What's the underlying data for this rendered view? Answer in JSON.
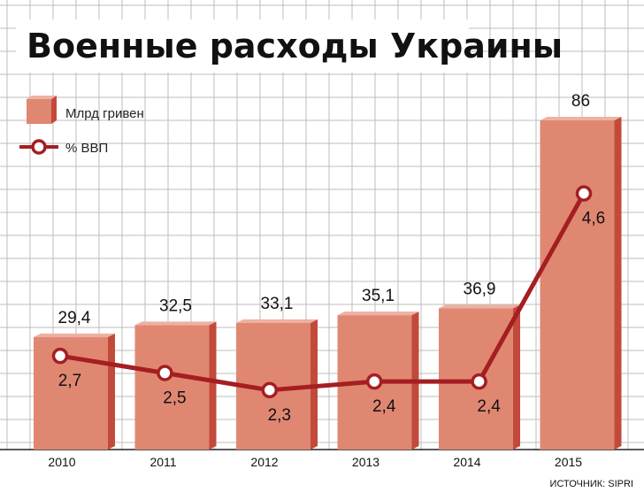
{
  "title": "Военные расходы Украины",
  "legend": {
    "bars": "Млрд гривен",
    "line": "% ВВП"
  },
  "source": "ИСТОЧНИК: SIPRI",
  "colors": {
    "bar_front": "#E08772",
    "bar_side": "#C24A3A",
    "bar_top": "#EDB1A2",
    "line": "#A41E22",
    "grid": "#BDBDBD"
  },
  "chart_data": {
    "type": "bar",
    "categories": [
      "2010",
      "2011",
      "2012",
      "2013",
      "2014",
      "2015"
    ],
    "series": [
      {
        "name": "Млрд гривен",
        "type": "bar",
        "values": [
          29.4,
          32.5,
          33.1,
          35.1,
          36.9,
          86
        ],
        "labels": [
          "29,4",
          "32,5",
          "33,1",
          "35,1",
          "36,9",
          "86"
        ]
      },
      {
        "name": "% ВВП",
        "type": "line",
        "values": [
          2.7,
          2.5,
          2.3,
          2.4,
          2.4,
          4.6
        ],
        "labels": [
          "2,7",
          "2,5",
          "2,3",
          "2,4",
          "2,4",
          "4,6"
        ]
      }
    ],
    "grid": true,
    "legend_position": "top-left"
  }
}
